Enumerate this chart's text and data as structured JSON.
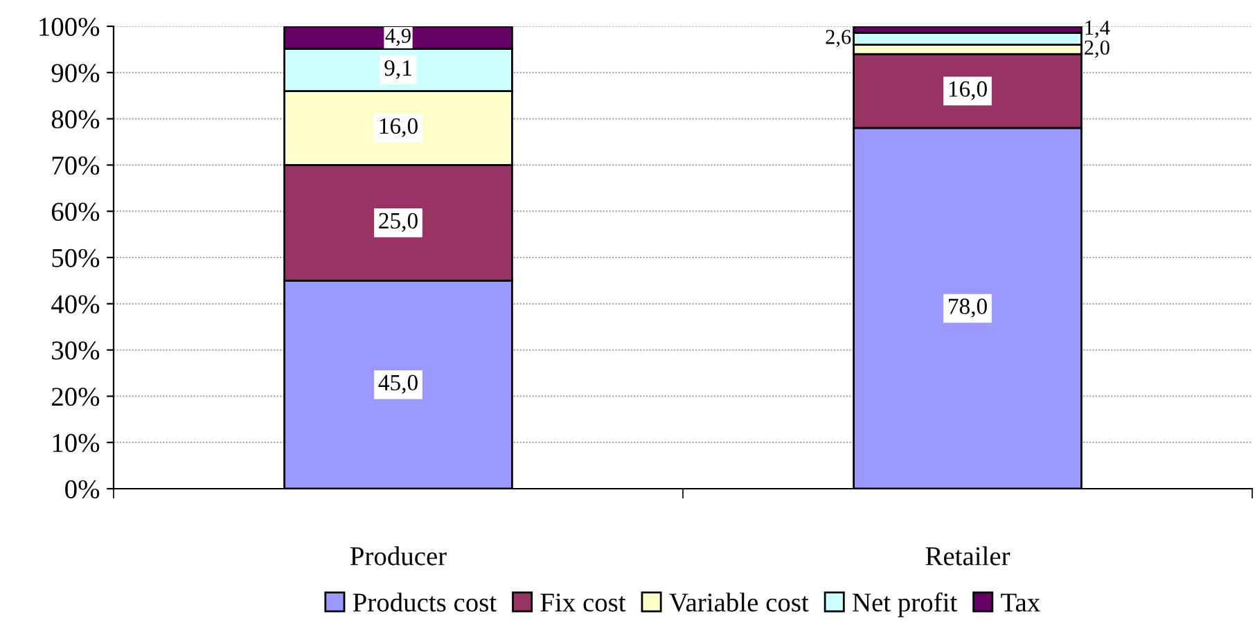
{
  "chart_data": {
    "type": "bar",
    "stacked": true,
    "categories": [
      "Producer",
      "Retailer"
    ],
    "series": [
      {
        "name": "Products cost",
        "color": "#9999ff",
        "values": [
          45.0,
          78.0
        ],
        "value_labels": [
          "45,0",
          "78,0"
        ]
      },
      {
        "name": "Fix cost",
        "color": "#993366",
        "values": [
          25.0,
          16.0
        ],
        "value_labels": [
          "25,0",
          "16,0"
        ]
      },
      {
        "name": "Variable cost",
        "color": "#ffffcc",
        "values": [
          16.0,
          2.0
        ],
        "value_labels": [
          "16,0",
          "2,0"
        ]
      },
      {
        "name": "Net profit",
        "color": "#ccffff",
        "values": [
          9.1,
          2.6
        ],
        "value_labels": [
          "9,1",
          "2,6"
        ]
      },
      {
        "name": "Tax",
        "color": "#660066",
        "values": [
          4.9,
          1.4
        ],
        "value_labels": [
          "4,9",
          "1,4"
        ]
      }
    ],
    "ylim": [
      0,
      100
    ],
    "yticks": [
      {
        "value": 0,
        "label": "0%"
      },
      {
        "value": 10,
        "label": "10%"
      },
      {
        "value": 20,
        "label": "20%"
      },
      {
        "value": 30,
        "label": "30%"
      },
      {
        "value": 40,
        "label": "40%"
      },
      {
        "value": 50,
        "label": "50%"
      },
      {
        "value": 60,
        "label": "60%"
      },
      {
        "value": 70,
        "label": "70%"
      },
      {
        "value": 80,
        "label": "80%"
      },
      {
        "value": 90,
        "label": "90%"
      },
      {
        "value": 100,
        "label": "100%"
      }
    ],
    "grid": "y",
    "legend": "bottom"
  }
}
